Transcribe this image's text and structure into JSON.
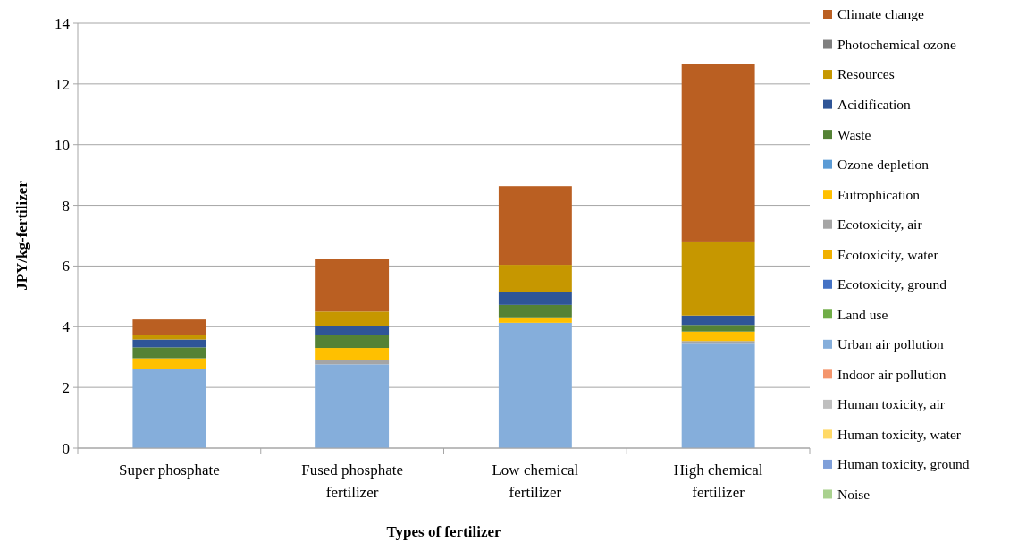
{
  "chart_data": {
    "type": "bar",
    "stacked": true,
    "xlabel": "Types of fertilizer",
    "ylabel": "JPY/kg-fertilizer",
    "categories": [
      "Super phosphate",
      "Fused phosphate fertilizer",
      "Low chemical fertilizer",
      "High chemical fertilizer"
    ],
    "ylim": [
      0,
      14
    ],
    "yticks": [
      0,
      2,
      4,
      6,
      8,
      10,
      12,
      14
    ],
    "grid": "y",
    "legend": "right",
    "series": [
      {
        "name": "Noise",
        "color": "#a9d18e",
        "values": [
          0,
          0,
          0,
          0
        ]
      },
      {
        "name": "Human toxicity, ground",
        "color": "#7f9fd9",
        "values": [
          0,
          0,
          0,
          0
        ]
      },
      {
        "name": "Human toxicity, water",
        "color": "#ffd966",
        "values": [
          0,
          0,
          0,
          0
        ]
      },
      {
        "name": "Human toxicity, air",
        "color": "#bfbfbf",
        "values": [
          0,
          0,
          0,
          0
        ]
      },
      {
        "name": "Indoor air pollution",
        "color": "#f4956c",
        "values": [
          0,
          0,
          0,
          0
        ]
      },
      {
        "name": "Urban air pollution",
        "color": "#85aedb",
        "values": [
          2.6,
          2.76,
          4.13,
          3.44
        ]
      },
      {
        "name": "Land use",
        "color": "#70ad47",
        "values": [
          0,
          0,
          0,
          0
        ]
      },
      {
        "name": "Ecotoxicity, ground",
        "color": "#4472c4",
        "values": [
          0,
          0,
          0,
          0
        ]
      },
      {
        "name": "Ecotoxicity, water",
        "color": "#f0b000",
        "values": [
          0,
          0,
          0,
          0
        ]
      },
      {
        "name": "Ecotoxicity, air",
        "color": "#a5a5a5",
        "values": [
          0,
          0.14,
          0,
          0.09
        ]
      },
      {
        "name": "Eutrophication",
        "color": "#ffc000",
        "values": [
          0.36,
          0.4,
          0.18,
          0.31
        ]
      },
      {
        "name": "Ozone depletion",
        "color": "#5b9bd5",
        "values": [
          0,
          0,
          0,
          0
        ]
      },
      {
        "name": "Waste",
        "color": "#548235",
        "values": [
          0.36,
          0.44,
          0.41,
          0.22
        ]
      },
      {
        "name": "Acidification",
        "color": "#2f5597",
        "values": [
          0.26,
          0.29,
          0.42,
          0.31
        ]
      },
      {
        "name": "Resources",
        "color": "#c69700",
        "values": [
          0.16,
          0.47,
          0.9,
          2.44
        ]
      },
      {
        "name": "Photochemical ozone",
        "color": "#7f7f7f",
        "values": [
          0,
          0,
          0,
          0
        ]
      },
      {
        "name": "Climate change",
        "color": "#ba5f22",
        "values": [
          0.5,
          1.73,
          2.59,
          5.85
        ]
      }
    ]
  }
}
